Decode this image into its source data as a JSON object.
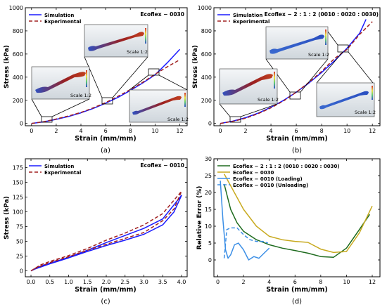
{
  "chart_data": [
    {
      "panel": "(a)",
      "type": "line",
      "xlabel": "Strain (mm/mm)",
      "ylabel": "Stress (kPa)",
      "xlim": [
        -0.5,
        12.6
      ],
      "ylim": [
        -20,
        1000
      ],
      "xticks": [
        0,
        2,
        4,
        6,
        8,
        10,
        12
      ],
      "yticks": [
        0,
        200,
        400,
        600,
        800,
        1000
      ],
      "annotation": "Ecoflex − 0030",
      "inset_label": "Scale 1:2",
      "legend_position": "top-left",
      "series": [
        {
          "name": "Simulation",
          "color": "#1a1aff",
          "dash": false,
          "x": [
            0,
            1,
            2,
            3,
            4,
            5,
            6,
            7,
            8,
            9,
            10,
            11,
            12
          ],
          "y": [
            0,
            14,
            35,
            60,
            92,
            130,
            175,
            225,
            285,
            350,
            420,
            525,
            640
          ]
        },
        {
          "name": "Experimental",
          "color": "#a02020",
          "dash": true,
          "x": [
            0,
            1,
            2,
            3,
            4,
            5,
            6,
            7,
            8,
            9,
            10,
            11,
            12
          ],
          "y": [
            0,
            15,
            38,
            65,
            95,
            135,
            180,
            235,
            292,
            355,
            425,
            490,
            550
          ]
        }
      ]
    },
    {
      "panel": "(b)",
      "type": "line",
      "xlabel": "Strain (mm/mm)",
      "ylabel": "Stress (kPa)",
      "xlim": [
        -0.5,
        12.6
      ],
      "ylim": [
        -20,
        1000
      ],
      "xticks": [
        0,
        2,
        4,
        6,
        8,
        10,
        12
      ],
      "yticks": [
        0,
        200,
        400,
        600,
        800,
        1000
      ],
      "annotation": "Ecoflex − 2 : 1 : 2 (0010 : 0020 : 0030)",
      "inset_label": "Scale 1:2",
      "legend_position": "top-left",
      "series": [
        {
          "name": "Simulation",
          "color": "#1a1aff",
          "dash": false,
          "x": [
            0,
            1,
            2,
            3,
            4,
            5,
            6,
            7,
            8,
            9,
            10,
            11,
            11.5
          ],
          "y": [
            0,
            20,
            50,
            90,
            140,
            200,
            270,
            350,
            440,
            540,
            650,
            780,
            900
          ]
        },
        {
          "name": "Experimental",
          "color": "#a02020",
          "dash": true,
          "x": [
            0,
            1,
            2,
            3,
            4,
            5,
            6,
            7,
            8,
            9,
            10,
            11,
            12
          ],
          "y": [
            0,
            18,
            45,
            85,
            135,
            195,
            270,
            355,
            450,
            560,
            640,
            770,
            880
          ]
        }
      ]
    },
    {
      "panel": "(c)",
      "type": "line",
      "xlabel": "Strain (mm/mm)",
      "ylabel": "Stress (kPa)",
      "xlim": [
        -0.15,
        4.15
      ],
      "ylim": [
        -10,
        190
      ],
      "xticks": [
        "0.0",
        "0.5",
        "1.0",
        "1.5",
        "2.0",
        "2.5",
        "3.0",
        "3.5",
        "4.0"
      ],
      "yticks": [
        0,
        25,
        50,
        75,
        100,
        125,
        150,
        175
      ],
      "annotation": "Ecoflex − 0010",
      "legend_position": "top-left",
      "series": [
        {
          "name": "Simulation",
          "color": "#1a1aff",
          "dash": false,
          "x": [
            0,
            0.25,
            0.5,
            1.0,
            1.5,
            2.0,
            2.5,
            3.0,
            3.5,
            4.0,
            3.8,
            3.5,
            3.0,
            2.5,
            2.0,
            1.5,
            1.0,
            0.5,
            0.1,
            0
          ],
          "y": [
            0,
            8,
            13,
            23,
            35,
            48,
            60,
            72,
            88,
            128,
            100,
            78,
            62,
            52,
            43,
            33,
            22,
            12,
            3,
            0
          ]
        },
        {
          "name": "Experimental",
          "color": "#a02020",
          "dash": true,
          "x": [
            0,
            0.25,
            0.5,
            1.0,
            1.5,
            2.0,
            2.5,
            3.0,
            3.5,
            4.0,
            3.8,
            3.5,
            3.0,
            2.5,
            2.0,
            1.5,
            1.0,
            0.5,
            0.1,
            0
          ],
          "y": [
            0,
            10,
            16,
            26,
            38,
            52,
            64,
            78,
            97,
            135,
            105,
            85,
            65,
            55,
            45,
            35,
            24,
            14,
            4,
            0
          ]
        }
      ]
    },
    {
      "panel": "(d)",
      "type": "line",
      "xlabel": "Strain (mm/mm)",
      "ylabel": "Relative Error (%)",
      "xlim": [
        -0.3,
        12.6
      ],
      "ylim": [
        -5,
        30
      ],
      "xticks": [
        0,
        2,
        4,
        6,
        8,
        10,
        12
      ],
      "yticks": [
        0,
        5,
        10,
        15,
        20,
        25,
        30
      ],
      "legend_position": "top-left",
      "series": [
        {
          "name": "Ecoflex − 2 : 1 : 2 (0010 : 0020 : 0030)",
          "color": "#1e6b1e",
          "dash": false,
          "x": [
            0.5,
            1,
            1.5,
            2,
            3,
            4,
            5,
            6,
            7,
            8,
            9,
            10,
            11,
            11.8
          ],
          "y": [
            22.5,
            15,
            11,
            8.5,
            6,
            4.5,
            3.5,
            2.8,
            2,
            1,
            0.8,
            3.5,
            9,
            13.5
          ]
        },
        {
          "name": "Ecoflex − 0030",
          "color": "#c8aa20",
          "dash": false,
          "x": [
            0.5,
            1,
            2,
            3,
            4,
            5,
            6,
            7,
            8,
            9,
            10,
            11,
            12
          ],
          "y": [
            25.5,
            22,
            15,
            10,
            7,
            6,
            5.5,
            5.2,
            3.2,
            2.2,
            2.5,
            8,
            16
          ]
        },
        {
          "name": "Ecoflex − 0010 (Loading)",
          "color": "#3c8fe6",
          "dash": false,
          "x": [
            0.2,
            0.4,
            0.6,
            0.8,
            1,
            1.3,
            1.6,
            2,
            2.4,
            2.8,
            3.2,
            3.6,
            4
          ],
          "y": [
            23.5,
            12,
            3,
            0.5,
            1.5,
            4.5,
            5,
            3,
            0,
            1,
            0.5,
            2,
            3.5
          ]
        },
        {
          "name": "Ecoflex − 0010 (Unloading)",
          "color": "#3c8fe6",
          "dash": true,
          "x": [
            0.5,
            0.7,
            1,
            1.5,
            2,
            2.5,
            3,
            3.5,
            3.9
          ],
          "y": [
            0.5,
            9,
            9.5,
            9.5,
            7.5,
            6,
            5.5,
            5.5,
            5
          ]
        }
      ]
    }
  ]
}
